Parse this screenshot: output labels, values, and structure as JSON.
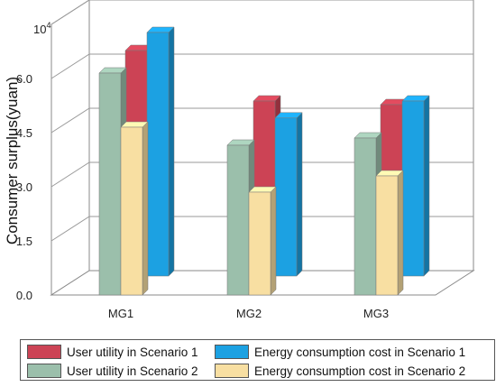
{
  "chart_data": {
    "type": "bar",
    "title": "",
    "ylabel": "Consumer surplus(yuan)",
    "y_multiplier": "10",
    "y_multiplier_exp": "4",
    "ylim": [
      0,
      7.5
    ],
    "yticks": [
      "0.0",
      "1.5",
      "3.0",
      "4.5",
      "6.0"
    ],
    "categories": [
      "MG1",
      "MG2",
      "MG3"
    ],
    "grid": true,
    "legend_position": "bottom",
    "series": [
      {
        "name": "User utility in Scenario 1",
        "color": "#cc4355",
        "values": [
          6.25,
          4.85,
          4.75
        ]
      },
      {
        "name": "Energy consumption cost in Scenario 1",
        "color": "#1ca1e2",
        "values": [
          6.75,
          4.38,
          4.85
        ]
      },
      {
        "name": "User utility in Scenario 2",
        "color": "#9bbfab",
        "values": [
          6.15,
          4.15,
          4.35
        ]
      },
      {
        "name": "Energy consumption cost in Scenario 2",
        "color": "#f8dfa2",
        "values": [
          4.65,
          2.85,
          3.3
        ]
      }
    ]
  }
}
